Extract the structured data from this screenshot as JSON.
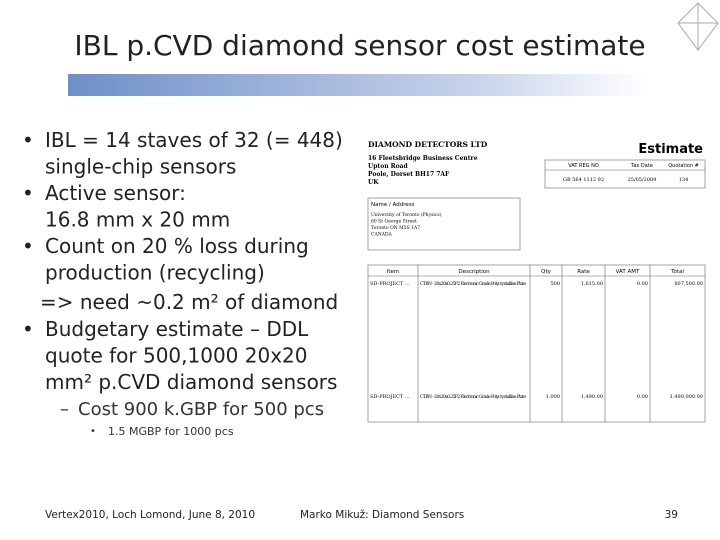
{
  "header": {
    "title": "IBL p.CVD diamond sensor cost estimate"
  },
  "bullets": [
    {
      "lines": [
        "IBL = 14 staves of 32 (= 448)",
        "single-chip sensors"
      ]
    },
    {
      "lines": [
        "Active sensor:",
        "16.8 mm x 20 mm"
      ]
    },
    {
      "lines": [
        "Count on 20 % loss during",
        "production (recycling)"
      ]
    },
    {
      "lines": [
        "Budgetary estimate – DDL",
        "quote for 500,1000 20x20",
        "mm² p.CVD diamond sensors"
      ]
    }
  ],
  "note": "=> need ~0.2 m² of diamond",
  "sub_bullet": "Cost 900 k.GBP for 500 pcs",
  "sub_sub_bullet": "1.5 MGBP for 1000 pcs",
  "estimate": {
    "company": "DIAMOND DETECTORS LTD",
    "address": [
      "16 Fleetsbridge Business Centre",
      "Upton Road",
      "Poole, Dorset BH17 7AF",
      "UK"
    ],
    "heading": "Estimate",
    "info_headers": [
      "VAT REG NO",
      "Tax Date",
      "Quotation #"
    ],
    "info_values": [
      "GB 564 1112 92",
      "25/05/2009",
      "134"
    ],
    "name_address_label": "Name / Address",
    "customer": [
      "University of Toronto (Physics)",
      "60 St George Street",
      "Toronto ON M5S 1A7",
      "CANADA"
    ],
    "item_headers": [
      "Item",
      "Description",
      "Qty",
      "Rate",
      "VAT AMT",
      "Total"
    ],
    "rows": [
      [
        "SD-PROJECT ...",
        "CTBN - 20x20x0.25P2 Electronic Grade Polycrystalline Plate",
        "500",
        "1,615.00",
        "0.00",
        "807,500.00"
      ],
      [
        "SD-PROJECT ...",
        "CTBN - 20x20x0.25P2 Electronic Grade Polycrystalline Plate",
        "1,000",
        "1,490.00",
        "0.00",
        "1,490,000.00"
      ]
    ]
  },
  "footer": {
    "left": "Vertex2010, Loch Lomond, June 8, 2010",
    "center": "Marko Mikuž: Diamond Sensors",
    "page": "39"
  }
}
